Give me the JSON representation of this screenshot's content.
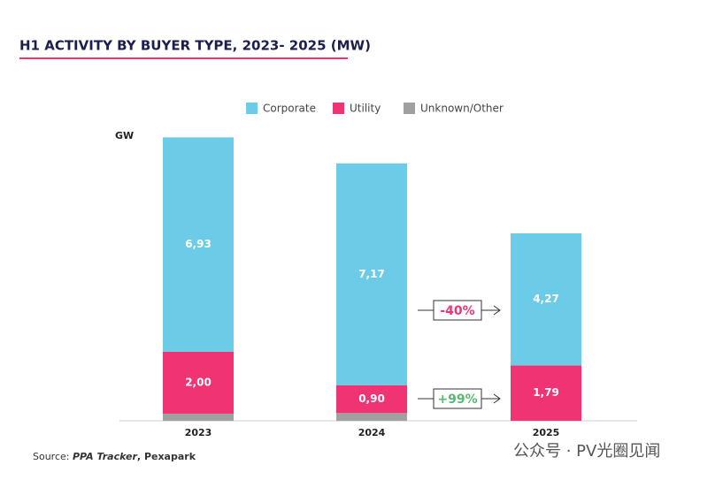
{
  "chart_data": {
    "type": "stacked_bar",
    "title": "H1 ACTIVITY BY BUYER TYPE, 2023- 2025 (MW)",
    "y_label": "GW",
    "categories": [
      "2023",
      "2024",
      "2025"
    ],
    "ylim": [
      0,
      9.5
    ],
    "series": [
      {
        "name": "Corporate",
        "color": "#6ccbe6",
        "values": [
          6.93,
          7.17,
          4.27
        ],
        "value_labels": [
          "6,93",
          "7,17",
          "4,27"
        ]
      },
      {
        "name": "Utility",
        "color": "#f03372",
        "values": [
          2.0,
          0.9,
          1.79
        ],
        "value_labels": [
          "2,00",
          "0,90",
          "1,79"
        ]
      },
      {
        "name": "Unknown/Other",
        "color": "#a0a0a0",
        "values": [
          0.23,
          0.25,
          0
        ]
      }
    ],
    "annotations": [
      {
        "text": "-40%",
        "color": "#f03372"
      },
      {
        "text": "+99%",
        "color": "#5cb870"
      }
    ],
    "source": {
      "prefix": "Source: ",
      "tool": "PPA Tracker",
      "separator": ", ",
      "org": "Pexapark"
    },
    "watermark": "公众号 · PV光圈见闻"
  }
}
